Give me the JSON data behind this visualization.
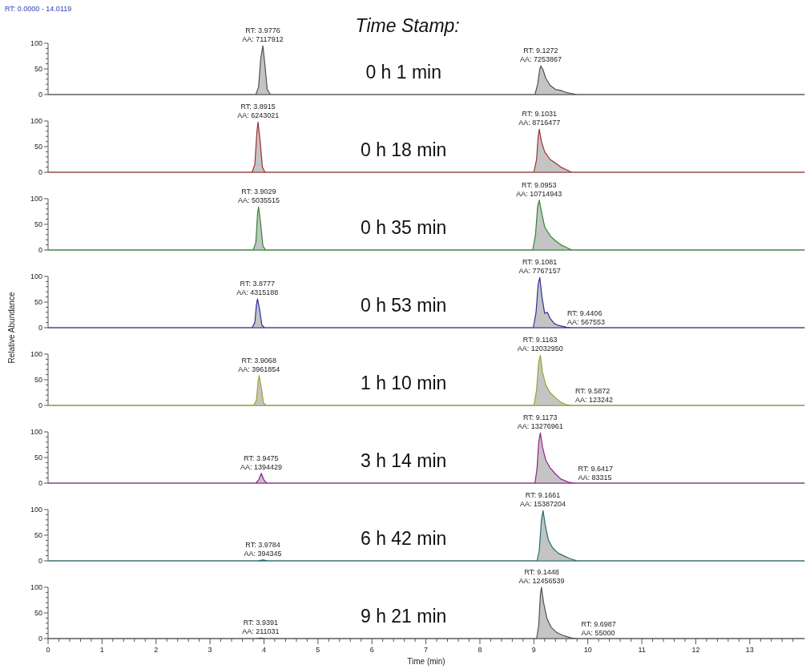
{
  "chart_data": [
    {
      "type": "area",
      "title": "0 h 1 min",
      "xlim": [
        0,
        14.0119
      ],
      "ylim": [
        0,
        100
      ],
      "yticks": [
        0,
        {
          "value": 10,
          "label": null
        },
        {
          "value": 20,
          "label": null
        },
        {
          "value": 30,
          "label": null
        },
        {
          "value": 40,
          "label": null
        },
        50,
        {
          "value": 60,
          "label": null
        },
        {
          "value": 70,
          "label": null
        },
        {
          "value": 80,
          "label": null
        },
        {
          "value": 90,
          "label": null
        },
        100
      ],
      "tick_labels": "y",
      "series": [
        {
          "color": "#505050",
          "x": [
            0,
            3.85,
            3.9,
            3.94,
            3.98,
            4.02,
            4.06,
            4.12,
            9.02,
            9.07,
            9.11,
            9.13,
            9.17,
            9.22,
            9.3,
            9.4,
            9.5,
            9.6,
            9.7,
            9.8,
            14.0119
          ],
          "values": [
            0,
            0,
            15,
            70,
            95,
            55,
            10,
            0,
            0,
            20,
            50,
            56,
            48,
            32,
            18,
            10,
            8,
            4,
            2,
            0,
            0
          ]
        }
      ],
      "annotations": [
        "RT: 0.0000 - 14.0119",
        "Time Stamp:",
        {
          "text": "RT: 3.9776\nAA: 7117912",
          "x": 3.9776,
          "y": 95
        },
        {
          "text": "RT: 9.1272\nAA: 7253867",
          "x": 9.1272,
          "y": 56
        }
      ]
    },
    {
      "type": "area",
      "title": "0 h 18 min",
      "xlim": [
        0,
        14.0119
      ],
      "ylim": [
        0,
        100
      ],
      "yticks": [
        0,
        {
          "value": 10,
          "label": null
        },
        {
          "value": 20,
          "label": null
        },
        {
          "value": 30,
          "label": null
        },
        {
          "value": 40,
          "label": null
        },
        50,
        {
          "value": 60,
          "label": null
        },
        {
          "value": 70,
          "label": null
        },
        {
          "value": 80,
          "label": null
        },
        {
          "value": 90,
          "label": null
        },
        100
      ],
      "tick_labels": "y",
      "series": [
        {
          "color": "#a03030",
          "x": [
            0,
            3.78,
            3.83,
            3.87,
            3.89,
            3.93,
            3.97,
            4.02,
            9.0,
            9.05,
            9.08,
            9.1,
            9.14,
            9.2,
            9.3,
            9.4,
            9.5,
            9.6,
            9.7,
            14.0119
          ],
          "values": [
            0,
            0,
            15,
            80,
            98,
            60,
            10,
            0,
            0,
            25,
            70,
            84,
            60,
            40,
            25,
            18,
            10,
            5,
            0,
            0
          ]
        }
      ],
      "annotations": [
        {
          "text": "RT: 3.8915\nAA: 6243021",
          "x": 3.8915,
          "y": 98
        },
        {
          "text": "RT: 9.1031\nAA: 8716477",
          "x": 9.1031,
          "y": 84
        }
      ]
    },
    {
      "type": "area",
      "title": "0 h 35 min",
      "xlim": [
        0,
        14.0119
      ],
      "ylim": [
        0,
        100
      ],
      "yticks": [
        0,
        {
          "value": 10,
          "label": null
        },
        {
          "value": 20,
          "label": null
        },
        {
          "value": 30,
          "label": null
        },
        {
          "value": 40,
          "label": null
        },
        50,
        {
          "value": 60,
          "label": null
        },
        {
          "value": 70,
          "label": null
        },
        {
          "value": 80,
          "label": null
        },
        {
          "value": 90,
          "label": null
        },
        100
      ],
      "tick_labels": "y",
      "series": [
        {
          "color": "#2a8a2a",
          "x": [
            0,
            3.8,
            3.85,
            3.88,
            3.9,
            3.94,
            3.98,
            4.03,
            8.98,
            9.03,
            9.07,
            9.1,
            9.14,
            9.2,
            9.3,
            9.4,
            9.5,
            9.6,
            9.7,
            14.0119
          ],
          "values": [
            0,
            0,
            15,
            70,
            84,
            50,
            8,
            0,
            0,
            30,
            85,
            97,
            75,
            45,
            28,
            18,
            10,
            5,
            0,
            0
          ]
        }
      ],
      "annotations": [
        {
          "text": "RT: 3.9029\nAA: 5035515",
          "x": 3.9029,
          "y": 84
        },
        {
          "text": "RT: 9.0953\nAA: 10714943",
          "x": 9.0953,
          "y": 97
        }
      ]
    },
    {
      "type": "area",
      "title": "0 h 53 min",
      "ylabel": "Relative Abundance",
      "xlim": [
        0,
        14.0119
      ],
      "ylim": [
        0,
        100
      ],
      "yticks": [
        0,
        {
          "value": 10,
          "label": null
        },
        {
          "value": 20,
          "label": null
        },
        {
          "value": 30,
          "label": null
        },
        {
          "value": 40,
          "label": null
        },
        50,
        {
          "value": 60,
          "label": null
        },
        {
          "value": 70,
          "label": null
        },
        {
          "value": 80,
          "label": null
        },
        {
          "value": 90,
          "label": null
        },
        100
      ],
      "tick_labels": "y",
      "series": [
        {
          "color": "#3030a0",
          "x": [
            0,
            3.78,
            3.83,
            3.86,
            3.88,
            3.92,
            3.96,
            4.01,
            8.99,
            9.04,
            9.08,
            9.11,
            9.15,
            9.2,
            9.25,
            9.3,
            9.38,
            9.44,
            9.52,
            9.6,
            9.7,
            14.0119
          ],
          "values": [
            0,
            0,
            10,
            45,
            56,
            35,
            5,
            0,
            0,
            30,
            85,
            98,
            60,
            28,
            30,
            18,
            8,
            5,
            3,
            1,
            0,
            0
          ]
        }
      ],
      "annotations": [
        {
          "text": "RT: 3.8777\nAA: 4315188",
          "x": 3.8777,
          "y": 56
        },
        {
          "text": "RT: 9.1081\nAA: 7767157",
          "x": 9.1081,
          "y": 98
        },
        {
          "text": "RT: 9.4406\nAA: 567553",
          "x": 9.4406,
          "y": 5
        }
      ]
    },
    {
      "type": "area",
      "title": "1 h 10 min",
      "xlim": [
        0,
        14.0119
      ],
      "ylim": [
        0,
        100
      ],
      "yticks": [
        0,
        {
          "value": 10,
          "label": null
        },
        {
          "value": 20,
          "label": null
        },
        {
          "value": 30,
          "label": null
        },
        {
          "value": 40,
          "label": null
        },
        50,
        {
          "value": 60,
          "label": null
        },
        {
          "value": 70,
          "label": null
        },
        {
          "value": 80,
          "label": null
        },
        {
          "value": 90,
          "label": null
        },
        100
      ],
      "tick_labels": "y",
      "series": [
        {
          "color": "#a0a030",
          "x": [
            0,
            3.81,
            3.86,
            3.89,
            3.91,
            3.95,
            3.99,
            4.04,
            9.0,
            9.05,
            9.09,
            9.12,
            9.16,
            9.22,
            9.3,
            9.4,
            9.5,
            9.59,
            9.7,
            14.0119
          ],
          "values": [
            0,
            0,
            10,
            45,
            58,
            35,
            5,
            0,
            0,
            30,
            85,
            98,
            65,
            40,
            25,
            15,
            6,
            2,
            0,
            0
          ]
        }
      ],
      "annotations": [
        {
          "text": "RT: 3.9068\nAA: 3961854",
          "x": 3.9068,
          "y": 58
        },
        {
          "text": "RT: 9.1163\nAA: 12032950",
          "x": 9.1163,
          "y": 98
        },
        {
          "text": "RT: 9.5872\nAA: 123242",
          "x": 9.5872,
          "y": 2
        }
      ]
    },
    {
      "type": "area",
      "title": "3 h 14 min",
      "xlim": [
        0,
        14.0119
      ],
      "ylim": [
        0,
        100
      ],
      "yticks": [
        0,
        {
          "value": 10,
          "label": null
        },
        {
          "value": 20,
          "label": null
        },
        {
          "value": 30,
          "label": null
        },
        {
          "value": 40,
          "label": null
        },
        50,
        {
          "value": 60,
          "label": null
        },
        {
          "value": 70,
          "label": null
        },
        {
          "value": 80,
          "label": null
        },
        {
          "value": 90,
          "label": null
        },
        100
      ],
      "tick_labels": "y",
      "series": [
        {
          "color": "#902090",
          "x": [
            0,
            3.85,
            3.9,
            3.95,
            4.0,
            4.05,
            9.02,
            9.06,
            9.09,
            9.12,
            9.16,
            9.22,
            9.3,
            9.4,
            9.5,
            9.64,
            9.75,
            14.0119
          ],
          "values": [
            0,
            0,
            6,
            19,
            6,
            0,
            0,
            30,
            80,
            98,
            70,
            45,
            30,
            18,
            8,
            2,
            0,
            0
          ]
        }
      ],
      "annotations": [
        {
          "text": "RT: 3.9475\nAA: 1394429",
          "x": 3.9475,
          "y": 19
        },
        {
          "text": "RT: 9.1173\nAA: 13276961",
          "x": 9.1173,
          "y": 98
        },
        {
          "text": "RT: 9.6417\nAA: 83315",
          "x": 9.6417,
          "y": 2
        }
      ]
    },
    {
      "type": "area",
      "title": "6 h 42 min",
      "xlim": [
        0,
        14.0119
      ],
      "ylim": [
        0,
        100
      ],
      "yticks": [
        0,
        {
          "value": 10,
          "label": null
        },
        {
          "value": 20,
          "label": null
        },
        {
          "value": 30,
          "label": null
        },
        {
          "value": 40,
          "label": null
        },
        50,
        {
          "value": 60,
          "label": null
        },
        {
          "value": 70,
          "label": null
        },
        {
          "value": 80,
          "label": null
        },
        {
          "value": 90,
          "label": null
        },
        100
      ],
      "tick_labels": "y",
      "series": [
        {
          "color": "#207070",
          "x": [
            0,
            3.88,
            3.98,
            4.08,
            9.06,
            9.1,
            9.14,
            9.17,
            9.21,
            9.27,
            9.35,
            9.45,
            9.55,
            9.65,
            9.8,
            14.0119
          ],
          "values": [
            0,
            0,
            2,
            0,
            0,
            20,
            80,
            98,
            70,
            40,
            25,
            15,
            10,
            5,
            0,
            0
          ]
        }
      ],
      "annotations": [
        {
          "text": "RT: 3.9784\nAA: 394345",
          "x": 3.9784,
          "y": 2
        },
        {
          "text": "RT: 9.1661\nAA: 15387204",
          "x": 9.1661,
          "y": 98
        }
      ]
    },
    {
      "type": "area",
      "title": "9 h 21 min",
      "xlabel": "Time (min)",
      "xlim": [
        0,
        14.0119
      ],
      "xticks": [
        0,
        {
          "value": 0.2,
          "label": null
        },
        {
          "value": 0.4,
          "label": null
        },
        {
          "value": 0.6,
          "label": null
        },
        {
          "value": 0.8,
          "label": null
        },
        1,
        {
          "value": 1.2,
          "label": null
        },
        {
          "value": 1.4,
          "label": null
        },
        {
          "value": 1.6,
          "label": null
        },
        {
          "value": 1.8,
          "label": null
        },
        2,
        {
          "value": 2.2,
          "label": null
        },
        {
          "value": 2.4,
          "label": null
        },
        {
          "value": 2.6,
          "label": null
        },
        {
          "value": 2.8,
          "label": null
        },
        3,
        {
          "value": 3.2,
          "label": null
        },
        {
          "value": 3.4,
          "label": null
        },
        {
          "value": 3.6,
          "label": null
        },
        {
          "value": 3.8,
          "label": null
        },
        4,
        {
          "value": 4.2,
          "label": null
        },
        {
          "value": 4.4,
          "label": null
        },
        {
          "value": 4.6,
          "label": null
        },
        {
          "value": 4.8,
          "label": null
        },
        5,
        {
          "value": 5.2,
          "label": null
        },
        {
          "value": 5.4,
          "label": null
        },
        {
          "value": 5.6,
          "label": null
        },
        {
          "value": 5.8,
          "label": null
        },
        6,
        {
          "value": 6.2,
          "label": null
        },
        {
          "value": 6.4,
          "label": null
        },
        {
          "value": 6.6,
          "label": null
        },
        {
          "value": 6.8,
          "label": null
        },
        7,
        {
          "value": 7.2,
          "label": null
        },
        {
          "value": 7.4,
          "label": null
        },
        {
          "value": 7.6,
          "label": null
        },
        {
          "value": 7.8,
          "label": null
        },
        8,
        {
          "value": 8.2,
          "label": null
        },
        {
          "value": 8.4,
          "label": null
        },
        {
          "value": 8.6,
          "label": null
        },
        {
          "value": 8.8,
          "label": null
        },
        9,
        {
          "value": 9.2,
          "label": null
        },
        {
          "value": 9.4,
          "label": null
        },
        {
          "value": 9.6,
          "label": null
        },
        {
          "value": 9.8,
          "label": null
        },
        10,
        {
          "value": 10.2,
          "label": null
        },
        {
          "value": 10.4,
          "label": null
        },
        {
          "value": 10.6,
          "label": null
        },
        {
          "value": 10.8,
          "label": null
        },
        11,
        {
          "value": 11.2,
          "label": null
        },
        {
          "value": 11.4,
          "label": null
        },
        {
          "value": 11.6,
          "label": null
        },
        {
          "value": 11.8,
          "label": null
        },
        12,
        {
          "value": 12.2,
          "label": null
        },
        {
          "value": 12.4,
          "label": null
        },
        {
          "value": 12.6,
          "label": null
        },
        {
          "value": 12.8,
          "label": null
        },
        13,
        {
          "value": 13.2,
          "label": null
        },
        {
          "value": 13.4,
          "label": null
        },
        {
          "value": 13.6,
          "label": null
        },
        {
          "value": 13.8,
          "label": null
        }
      ],
      "ylim": [
        0,
        100
      ],
      "yticks": [
        0,
        {
          "value": 10,
          "label": null
        },
        {
          "value": 20,
          "label": null
        },
        {
          "value": 30,
          "label": null
        },
        {
          "value": 40,
          "label": null
        },
        50,
        {
          "value": 60,
          "label": null
        },
        {
          "value": 70,
          "label": null
        },
        {
          "value": 80,
          "label": null
        },
        {
          "value": 90,
          "label": null
        },
        100
      ],
      "series": [
        {
          "color": "#505050",
          "x": [
            0,
            3.85,
            3.94,
            4.03,
            9.05,
            9.09,
            9.12,
            9.14,
            9.18,
            9.24,
            9.32,
            9.42,
            9.52,
            9.6,
            9.7,
            9.8,
            14.0119
          ],
          "values": [
            0,
            0,
            1,
            0,
            0,
            25,
            85,
            100,
            70,
            40,
            22,
            12,
            7,
            4,
            1,
            0,
            0
          ]
        }
      ],
      "annotations": [
        {
          "text": "RT: 3.9391\nAA: 211031",
          "x": 3.9391,
          "y": 1
        },
        {
          "text": "RT: 9.1448\nAA: 12456539",
          "x": 9.1448,
          "y": 100
        },
        {
          "text": "RT: 9.6987\nAA: 55000",
          "x": 9.6987,
          "y": 1
        }
      ]
    }
  ]
}
